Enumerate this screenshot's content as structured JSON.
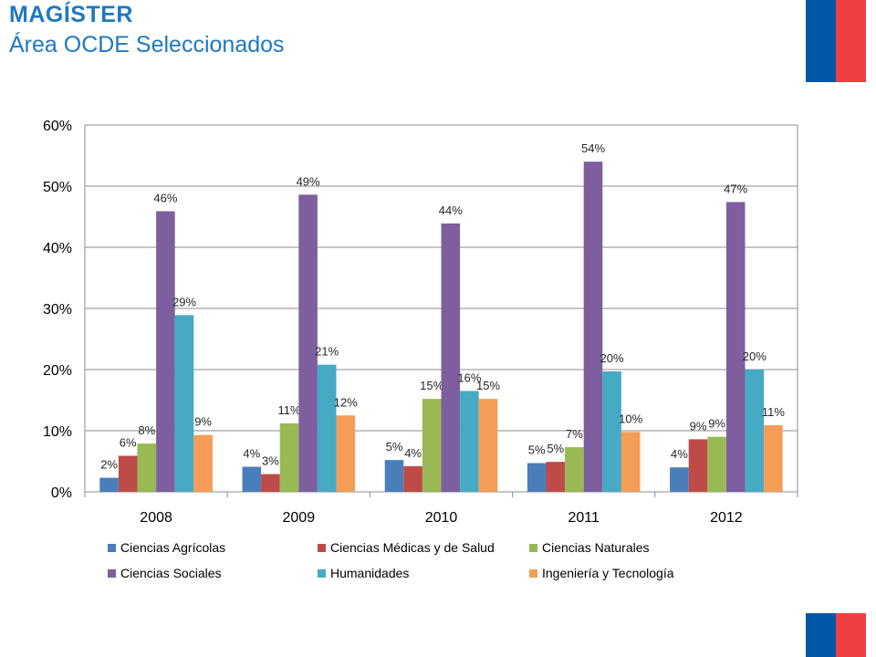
{
  "header": {
    "title": "MAGÍSTER",
    "subtitle": "Área OCDE Seleccionados"
  },
  "colors": {
    "title": "#1f78c1",
    "flag_blue": "#0057a8",
    "flag_red": "#ef3e42"
  },
  "chart_data": {
    "type": "bar",
    "categories": [
      "2008",
      "2009",
      "2010",
      "2011",
      "2012"
    ],
    "ylim": [
      0,
      60
    ],
    "yticks": [
      0,
      10,
      20,
      30,
      40,
      50,
      60
    ],
    "ytick_labels": [
      "0%",
      "10%",
      "20%",
      "30%",
      "40%",
      "50%",
      "60%"
    ],
    "grid": true,
    "legend_position": "bottom",
    "series": [
      {
        "name": "Ciencias Agrícolas",
        "color": "#4a7ebb",
        "values": [
          2.3,
          4.1,
          5.2,
          4.7,
          4.0
        ],
        "labels": [
          "2%",
          "4%",
          "5%",
          "5%",
          "4%"
        ]
      },
      {
        "name": "Ciencias Médicas y de Salud",
        "color": "#be4b48",
        "values": [
          5.9,
          2.9,
          4.2,
          4.9,
          8.6
        ],
        "labels": [
          "6%",
          "3%",
          "4%",
          "5%",
          "9%"
        ]
      },
      {
        "name": "Ciencias Naturales",
        "color": "#98b954",
        "values": [
          7.9,
          11.2,
          15.2,
          7.3,
          9.0
        ],
        "labels": [
          "8%",
          "11%",
          "15%",
          "7%",
          "9%"
        ]
      },
      {
        "name": "Ciencias Sociales",
        "color": "#7d5fa0",
        "values": [
          45.9,
          48.6,
          43.9,
          54.0,
          47.4
        ],
        "labels": [
          "46%",
          "49%",
          "44%",
          "54%",
          "47%"
        ]
      },
      {
        "name": "Humanidades",
        "color": "#46aac4",
        "values": [
          28.9,
          20.8,
          16.5,
          19.7,
          20.0
        ],
        "labels": [
          "29%",
          "21%",
          "16%",
          "20%",
          "20%"
        ]
      },
      {
        "name": "Ingeniería y Tecnología",
        "color": "#f59d56",
        "values": [
          9.3,
          12.5,
          15.2,
          9.8,
          10.9
        ],
        "labels": [
          "9%",
          "12%",
          "15%",
          "10%",
          "11%"
        ]
      }
    ]
  }
}
